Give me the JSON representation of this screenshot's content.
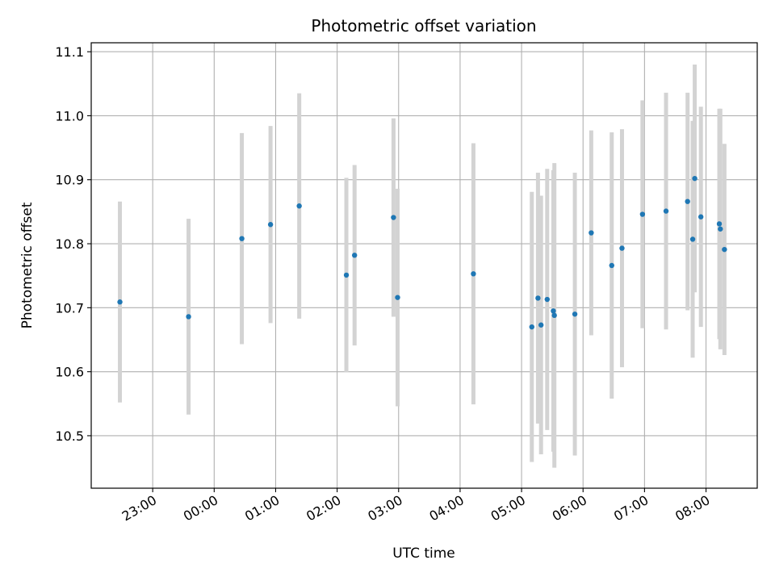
{
  "chart_data": {
    "type": "scatter",
    "title": "Photometric offset variation",
    "xlabel": "UTC time",
    "ylabel": "Photometric offset",
    "grid": true,
    "colors": {
      "point": "#1f77b4",
      "errorbar": "#d3d3d3",
      "grid": "#b0b0b0"
    },
    "x_ticks": [
      "23:00",
      "00:00",
      "01:00",
      "02:00",
      "03:00",
      "04:00",
      "05:00",
      "06:00",
      "07:00",
      "08:00"
    ],
    "y_ticks": [
      "10.5",
      "10.6",
      "10.7",
      "10.8",
      "10.9",
      "11.0",
      "11.1"
    ],
    "xlim": [
      "22:00",
      "08:50"
    ],
    "ylim": [
      10.418,
      11.114
    ],
    "series": [
      {
        "points": [
          {
            "x": "22:28",
            "y": 10.709,
            "err": 0.157
          },
          {
            "x": "23:35",
            "y": 10.686,
            "err": 0.153
          },
          {
            "x": "00:27",
            "y": 10.808,
            "err": 0.165
          },
          {
            "x": "00:55",
            "y": 10.83,
            "err": 0.154
          },
          {
            "x": "01:23",
            "y": 10.859,
            "err": 0.176
          },
          {
            "x": "02:09",
            "y": 10.751,
            "err": 0.152
          },
          {
            "x": "02:17",
            "y": 10.782,
            "err": 0.141
          },
          {
            "x": "02:55",
            "y": 10.841,
            "err": 0.155
          },
          {
            "x": "02:59",
            "y": 10.716,
            "err": 0.17
          },
          {
            "x": "04:13",
            "y": 10.753,
            "err": 0.204
          },
          {
            "x": "05:10",
            "y": 10.67,
            "err": 0.211
          },
          {
            "x": "05:16",
            "y": 10.715,
            "err": 0.196
          },
          {
            "x": "05:19",
            "y": 10.673,
            "err": 0.202
          },
          {
            "x": "05:25",
            "y": 10.713,
            "err": 0.204
          },
          {
            "x": "05:31",
            "y": 10.695,
            "err": 0.22
          },
          {
            "x": "05:32",
            "y": 10.688,
            "err": 0.238
          },
          {
            "x": "05:52",
            "y": 10.69,
            "err": 0.221
          },
          {
            "x": "06:08",
            "y": 10.817,
            "err": 0.16
          },
          {
            "x": "06:28",
            "y": 10.766,
            "err": 0.208
          },
          {
            "x": "06:38",
            "y": 10.793,
            "err": 0.186
          },
          {
            "x": "06:58",
            "y": 10.846,
            "err": 0.178
          },
          {
            "x": "07:21",
            "y": 10.851,
            "err": 0.185
          },
          {
            "x": "07:42",
            "y": 10.866,
            "err": 0.17
          },
          {
            "x": "07:47",
            "y": 10.807,
            "err": 0.185
          },
          {
            "x": "07:49",
            "y": 10.902,
            "err": 0.178
          },
          {
            "x": "07:55",
            "y": 10.842,
            "err": 0.172
          },
          {
            "x": "08:13",
            "y": 10.831,
            "err": 0.18
          },
          {
            "x": "08:14",
            "y": 10.823,
            "err": 0.188
          },
          {
            "x": "08:18",
            "y": 10.791,
            "err": 0.165
          }
        ]
      }
    ]
  }
}
